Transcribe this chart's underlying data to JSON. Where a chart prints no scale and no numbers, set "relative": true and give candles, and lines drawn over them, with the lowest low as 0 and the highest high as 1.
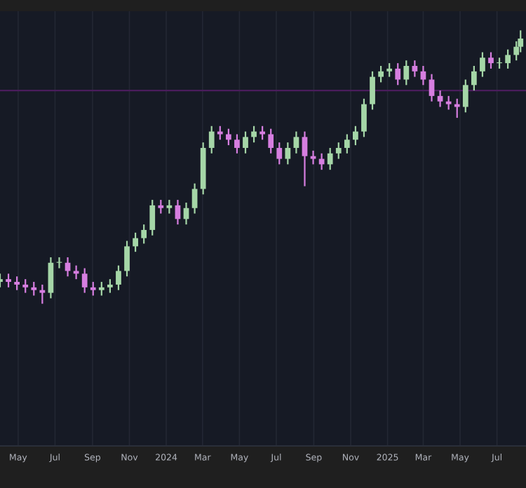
{
  "chart_data": {
    "type": "candlestick",
    "relative": true,
    "x": [
      "2023-04-01",
      "2023-04-15",
      "2023-04-29",
      "2023-05-13",
      "2023-05-27",
      "2023-06-10",
      "2023-06-24",
      "2023-07-08",
      "2023-07-22",
      "2023-08-05",
      "2023-08-19",
      "2023-09-02",
      "2023-09-16",
      "2023-09-30",
      "2023-10-14",
      "2023-10-28",
      "2023-11-11",
      "2023-11-25",
      "2023-12-09",
      "2023-12-23",
      "2024-01-06",
      "2024-01-20",
      "2024-02-03",
      "2024-02-17",
      "2024-03-02",
      "2024-03-16",
      "2024-03-30",
      "2024-04-13",
      "2024-04-27",
      "2024-05-11",
      "2024-05-25",
      "2024-06-08",
      "2024-06-22",
      "2024-07-06",
      "2024-07-20",
      "2024-08-03",
      "2024-08-17",
      "2024-08-31",
      "2024-09-14",
      "2024-09-28",
      "2024-10-12",
      "2024-10-26",
      "2024-11-09",
      "2024-11-23",
      "2024-12-07",
      "2024-12-21",
      "2025-01-04",
      "2025-01-18",
      "2025-02-01",
      "2025-02-15",
      "2025-03-01",
      "2025-03-15",
      "2025-03-29",
      "2025-04-12",
      "2025-04-26",
      "2025-05-10",
      "2025-05-24",
      "2025-06-07",
      "2025-06-21",
      "2025-07-05",
      "2025-07-19",
      "2025-08-02",
      "2025-08-09"
    ],
    "ohlc": [
      [
        0.08,
        0.11,
        0.06,
        0.09
      ],
      [
        0.09,
        0.11,
        0.06,
        0.08
      ],
      [
        0.08,
        0.1,
        0.05,
        0.07
      ],
      [
        0.07,
        0.09,
        0.04,
        0.06
      ],
      [
        0.06,
        0.08,
        0.03,
        0.05
      ],
      [
        0.05,
        0.07,
        0,
        0.04
      ],
      [
        0.04,
        0.17,
        0.02,
        0.15
      ],
      [
        0.15,
        0.17,
        0.13,
        0.15
      ],
      [
        0.15,
        0.17,
        0.1,
        0.12
      ],
      [
        0.12,
        0.14,
        0.09,
        0.11
      ],
      [
        0.11,
        0.13,
        0.04,
        0.06
      ],
      [
        0.06,
        0.08,
        0.03,
        0.05
      ],
      [
        0.05,
        0.08,
        0.03,
        0.06
      ],
      [
        0.06,
        0.09,
        0.04,
        0.07
      ],
      [
        0.07,
        0.14,
        0.05,
        0.12
      ],
      [
        0.12,
        0.23,
        0.1,
        0.21
      ],
      [
        0.21,
        0.26,
        0.19,
        0.24
      ],
      [
        0.24,
        0.29,
        0.22,
        0.27
      ],
      [
        0.27,
        0.38,
        0.25,
        0.36
      ],
      [
        0.36,
        0.38,
        0.33,
        0.35
      ],
      [
        0.35,
        0.38,
        0.33,
        0.36
      ],
      [
        0.36,
        0.38,
        0.29,
        0.31
      ],
      [
        0.31,
        0.37,
        0.29,
        0.35
      ],
      [
        0.35,
        0.44,
        0.33,
        0.42
      ],
      [
        0.42,
        0.59,
        0.4,
        0.57
      ],
      [
        0.57,
        0.65,
        0.55,
        0.63
      ],
      [
        0.63,
        0.65,
        0.6,
        0.62
      ],
      [
        0.62,
        0.64,
        0.58,
        0.6
      ],
      [
        0.6,
        0.62,
        0.55,
        0.57
      ],
      [
        0.57,
        0.63,
        0.55,
        0.61
      ],
      [
        0.61,
        0.65,
        0.59,
        0.63
      ],
      [
        0.63,
        0.65,
        0.6,
        0.62
      ],
      [
        0.62,
        0.64,
        0.55,
        0.57
      ],
      [
        0.57,
        0.59,
        0.51,
        0.53
      ],
      [
        0.53,
        0.59,
        0.51,
        0.57
      ],
      [
        0.57,
        0.63,
        0.55,
        0.61
      ],
      [
        0.61,
        0.63,
        0.43,
        0.54
      ],
      [
        0.54,
        0.56,
        0.51,
        0.53
      ],
      [
        0.53,
        0.55,
        0.49,
        0.51
      ],
      [
        0.51,
        0.57,
        0.49,
        0.55
      ],
      [
        0.55,
        0.59,
        0.53,
        0.57
      ],
      [
        0.57,
        0.62,
        0.55,
        0.6
      ],
      [
        0.6,
        0.65,
        0.58,
        0.63
      ],
      [
        0.63,
        0.75,
        0.61,
        0.73
      ],
      [
        0.73,
        0.85,
        0.71,
        0.83
      ],
      [
        0.83,
        0.87,
        0.81,
        0.85
      ],
      [
        0.85,
        0.88,
        0.83,
        0.86
      ],
      [
        0.86,
        0.88,
        0.8,
        0.82
      ],
      [
        0.82,
        0.89,
        0.8,
        0.87
      ],
      [
        0.87,
        0.89,
        0.83,
        0.85
      ],
      [
        0.85,
        0.87,
        0.8,
        0.82
      ],
      [
        0.82,
        0.84,
        0.74,
        0.76
      ],
      [
        0.76,
        0.78,
        0.72,
        0.74
      ],
      [
        0.74,
        0.76,
        0.71,
        0.73
      ],
      [
        0.73,
        0.75,
        0.68,
        0.72
      ],
      [
        0.72,
        0.82,
        0.7,
        0.8
      ],
      [
        0.8,
        0.87,
        0.78,
        0.85
      ],
      [
        0.85,
        0.92,
        0.83,
        0.9
      ],
      [
        0.9,
        0.92,
        0.86,
        0.88
      ],
      [
        0.88,
        0.9,
        0.86,
        0.88
      ],
      [
        0.88,
        0.93,
        0.86,
        0.91
      ],
      [
        0.91,
        0.96,
        0.89,
        0.94
      ],
      [
        0.94,
        1,
        0.92,
        0.97
      ]
    ],
    "colors": [
      "#a5d6a7",
      "#d67ee0",
      "#d67ee0",
      "#d67ee0",
      "#d67ee0",
      "#d67ee0",
      "#a5d6a7",
      "#a5d6a7",
      "#d67ee0",
      "#d67ee0",
      "#d67ee0",
      "#d67ee0",
      "#a5d6a7",
      "#a5d6a7",
      "#a5d6a7",
      "#a5d6a7",
      "#a5d6a7",
      "#a5d6a7",
      "#a5d6a7",
      "#d67ee0",
      "#a5d6a7",
      "#d67ee0",
      "#a5d6a7",
      "#a5d6a7",
      "#a5d6a7",
      "#a5d6a7",
      "#d67ee0",
      "#d67ee0",
      "#d67ee0",
      "#a5d6a7",
      "#a5d6a7",
      "#d67ee0",
      "#d67ee0",
      "#d67ee0",
      "#a5d6a7",
      "#a5d6a7",
      "#d67ee0",
      "#d67ee0",
      "#d67ee0",
      "#a5d6a7",
      "#a5d6a7",
      "#a5d6a7",
      "#a5d6a7",
      "#a5d6a7",
      "#a5d6a7",
      "#a5d6a7",
      "#a5d6a7",
      "#d67ee0",
      "#a5d6a7",
      "#d67ee0",
      "#d67ee0",
      "#d67ee0",
      "#d67ee0",
      "#d67ee0",
      "#d67ee0",
      "#a5d6a7",
      "#a5d6a7",
      "#a5d6a7",
      "#d67ee0",
      "#a5d6a7",
      "#a5d6a7",
      "#a5d6a7",
      "#a5d6a7"
    ],
    "xlim": [
      "2023-04-01",
      "2025-08-18"
    ],
    "xticks": [
      {
        "value": "2023-05",
        "label": "May"
      },
      {
        "value": "2023-07",
        "label": "Jul"
      },
      {
        "value": "2023-09",
        "label": "Sep"
      },
      {
        "value": "2023-11",
        "label": "Nov"
      },
      {
        "value": "2024-01",
        "label": "2024"
      },
      {
        "value": "2024-03",
        "label": "Mar"
      },
      {
        "value": "2024-05",
        "label": "May"
      },
      {
        "value": "2024-07",
        "label": "Jul"
      },
      {
        "value": "2024-09",
        "label": "Sep"
      },
      {
        "value": "2024-11",
        "label": "Nov"
      },
      {
        "value": "2025-01",
        "label": "2025"
      },
      {
        "value": "2025-03",
        "label": "Mar"
      },
      {
        "value": "2025-05",
        "label": "May"
      },
      {
        "value": "2025-07",
        "label": "Jul"
      }
    ],
    "ref_lines": [
      {
        "axis": "y",
        "value": 0.78,
        "color": "#4a1d5c"
      }
    ],
    "grid": "x"
  }
}
